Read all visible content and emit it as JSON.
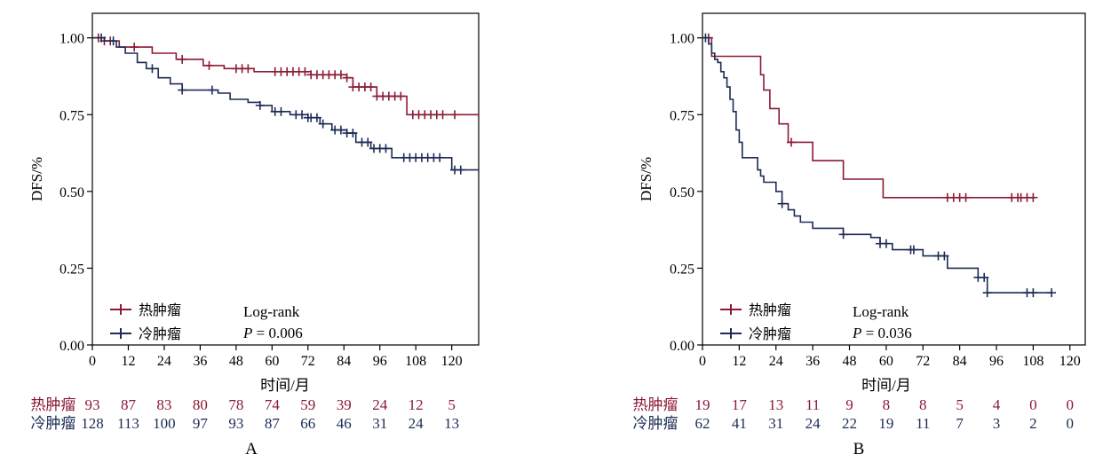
{
  "colors": {
    "hot": "#8b1a34",
    "cold": "#1b2c55",
    "axis": "#000000"
  },
  "chart_data": [
    {
      "type": "line",
      "panel_label": "A",
      "xlabel": "时间/月",
      "ylabel": "DFS/%",
      "xlim": [
        0,
        129
      ],
      "ylim": [
        0,
        1.0
      ],
      "x_ticks": [
        0,
        12,
        24,
        36,
        48,
        60,
        72,
        84,
        96,
        108,
        120
      ],
      "y_ticks": [
        "0.00",
        "0.25",
        "0.50",
        "0.75",
        "1.00"
      ],
      "legend_placement": "bottom-left",
      "annotation": {
        "test": "Log-rank",
        "p_label": "P",
        "p_value": "= 0.006"
      },
      "series": [
        {
          "name": "热肿瘤",
          "color": "#8b1a34",
          "steps": [
            [
              0,
              1.0
            ],
            [
              3,
              0.99
            ],
            [
              9,
              0.97
            ],
            [
              20,
              0.95
            ],
            [
              28,
              0.93
            ],
            [
              37,
              0.91
            ],
            [
              44,
              0.9
            ],
            [
              54,
              0.89
            ],
            [
              73,
              0.88
            ],
            [
              85,
              0.87
            ],
            [
              87,
              0.84
            ],
            [
              95,
              0.81
            ],
            [
              105,
              0.75
            ],
            [
              129,
              0.75
            ]
          ],
          "censor_x": [
            2,
            4,
            6,
            14,
            30,
            39,
            48,
            50,
            52,
            61,
            63,
            65,
            67,
            69,
            71,
            73,
            75,
            77,
            79,
            81,
            83,
            85,
            87,
            89,
            91,
            93,
            95,
            97,
            99,
            101,
            103,
            107,
            109,
            111,
            113,
            115,
            117,
            121
          ]
        },
        {
          "name": "冷肿瘤",
          "color": "#1b2c55",
          "steps": [
            [
              0,
              1.0
            ],
            [
              4,
              0.99
            ],
            [
              8,
              0.97
            ],
            [
              11,
              0.95
            ],
            [
              15,
              0.92
            ],
            [
              18,
              0.9
            ],
            [
              22,
              0.87
            ],
            [
              26,
              0.85
            ],
            [
              30,
              0.83
            ],
            [
              42,
              0.82
            ],
            [
              46,
              0.8
            ],
            [
              52,
              0.79
            ],
            [
              56,
              0.78
            ],
            [
              60,
              0.76
            ],
            [
              66,
              0.75
            ],
            [
              72,
              0.74
            ],
            [
              76,
              0.72
            ],
            [
              80,
              0.7
            ],
            [
              85,
              0.69
            ],
            [
              88,
              0.66
            ],
            [
              93,
              0.64
            ],
            [
              100,
              0.61
            ],
            [
              120,
              0.57
            ],
            [
              129,
              0.57
            ]
          ],
          "censor_x": [
            3,
            7,
            20,
            30,
            40,
            56,
            61,
            63,
            68,
            70,
            72,
            73,
            75,
            77,
            81,
            83,
            85,
            87,
            90,
            92,
            94,
            96,
            98,
            104,
            106,
            108,
            110,
            112,
            114,
            116,
            121,
            123
          ]
        }
      ],
      "risk_table": {
        "times": [
          0,
          12,
          24,
          36,
          48,
          60,
          72,
          84,
          96,
          108,
          120
        ],
        "rows": [
          {
            "name": "热肿瘤",
            "color": "#8b1a34",
            "values": [
              "93",
              "87",
              "83",
              "80",
              "78",
              "74",
              "59",
              "39",
              "24",
              "12",
              "5"
            ]
          },
          {
            "name": "冷肿瘤",
            "color": "#1b2c55",
            "values": [
              "128",
              "113",
              "100",
              "97",
              "93",
              "87",
              "66",
              "46",
              "31",
              "24",
              "13"
            ]
          }
        ]
      }
    },
    {
      "type": "line",
      "panel_label": "B",
      "xlabel": "时间/月",
      "ylabel": "DFS/%",
      "xlim": [
        0,
        125
      ],
      "ylim": [
        0,
        1.0
      ],
      "x_ticks": [
        0,
        12,
        24,
        36,
        48,
        60,
        72,
        84,
        96,
        108,
        120
      ],
      "y_ticks": [
        "0.00",
        "0.25",
        "0.50",
        "0.75",
        "1.00"
      ],
      "legend_placement": "bottom-left",
      "annotation": {
        "test": "Log-rank",
        "p_label": "P",
        "p_value": "= 0.036"
      },
      "series": [
        {
          "name": "热肿瘤",
          "color": "#8b1a34",
          "steps": [
            [
              0,
              1.0
            ],
            [
              3,
              0.94
            ],
            [
              19,
              0.88
            ],
            [
              20,
              0.83
            ],
            [
              22,
              0.77
            ],
            [
              25,
              0.72
            ],
            [
              28,
              0.66
            ],
            [
              36,
              0.6
            ],
            [
              46,
              0.54
            ],
            [
              59,
              0.48
            ],
            [
              108,
              0.48
            ]
          ],
          "censor_x": [
            2,
            29,
            80,
            82,
            84,
            86,
            101,
            103,
            104,
            106,
            108
          ]
        },
        {
          "name": "冷肿瘤",
          "color": "#1b2c55",
          "steps": [
            [
              0,
              1.0
            ],
            [
              2,
              0.98
            ],
            [
              3,
              0.95
            ],
            [
              4,
              0.93
            ],
            [
              5,
              0.92
            ],
            [
              6,
              0.89
            ],
            [
              7,
              0.87
            ],
            [
              8,
              0.84
            ],
            [
              9,
              0.8
            ],
            [
              10,
              0.76
            ],
            [
              11,
              0.7
            ],
            [
              12,
              0.66
            ],
            [
              13,
              0.61
            ],
            [
              18,
              0.57
            ],
            [
              19,
              0.55
            ],
            [
              20,
              0.53
            ],
            [
              24,
              0.5
            ],
            [
              26,
              0.46
            ],
            [
              28,
              0.44
            ],
            [
              30,
              0.42
            ],
            [
              32,
              0.4
            ],
            [
              36,
              0.38
            ],
            [
              46,
              0.36
            ],
            [
              55,
              0.35
            ],
            [
              58,
              0.33
            ],
            [
              62,
              0.31
            ],
            [
              72,
              0.29
            ],
            [
              80,
              0.25
            ],
            [
              90,
              0.22
            ],
            [
              93,
              0.17
            ],
            [
              114,
              0.17
            ]
          ],
          "censor_x": [
            1,
            26,
            46,
            58,
            60,
            68,
            69,
            77,
            79,
            90,
            92,
            93,
            106,
            108,
            114
          ]
        }
      ],
      "risk_table": {
        "times": [
          0,
          12,
          24,
          36,
          48,
          60,
          72,
          84,
          96,
          108,
          120
        ],
        "rows": [
          {
            "name": "热肿瘤",
            "color": "#8b1a34",
            "values": [
              "19",
              "17",
              "13",
              "11",
              "9",
              "8",
              "8",
              "5",
              "4",
              "0",
              "0"
            ]
          },
          {
            "name": "冷肿瘤",
            "color": "#1b2c55",
            "values": [
              "62",
              "41",
              "31",
              "24",
              "22",
              "19",
              "11",
              "7",
              "3",
              "2",
              "0"
            ]
          }
        ]
      }
    }
  ]
}
